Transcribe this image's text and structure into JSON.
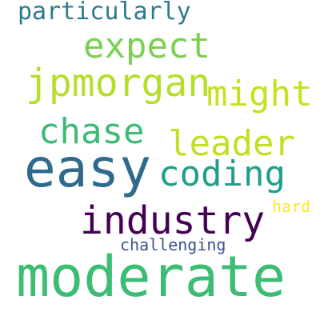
{
  "words": [
    {
      "id": "particularly",
      "text": "particularly",
      "color": "#2b7b8e"
    },
    {
      "id": "expect",
      "text": "expect",
      "color": "#7ad151"
    },
    {
      "id": "jpmorgan",
      "text": "jpmorgan",
      "color": "#b5de2b"
    },
    {
      "id": "might",
      "text": "might",
      "color": "#c8e020"
    },
    {
      "id": "chase",
      "text": "chase",
      "color": "#3cbb75"
    },
    {
      "id": "leader",
      "text": "leader",
      "color": "#c2df23"
    },
    {
      "id": "easy",
      "text": "easy",
      "color": "#2f6a8d"
    },
    {
      "id": "coding",
      "text": "coding",
      "color": "#1f9e89"
    },
    {
      "id": "industry",
      "text": "industry",
      "color": "#440154"
    },
    {
      "id": "hard",
      "text": "hard",
      "color": "#fde725"
    },
    {
      "id": "challenging",
      "text": "challenging",
      "color": "#3b528b"
    },
    {
      "id": "moderate",
      "text": "moderate",
      "color": "#3dbc74"
    }
  ]
}
